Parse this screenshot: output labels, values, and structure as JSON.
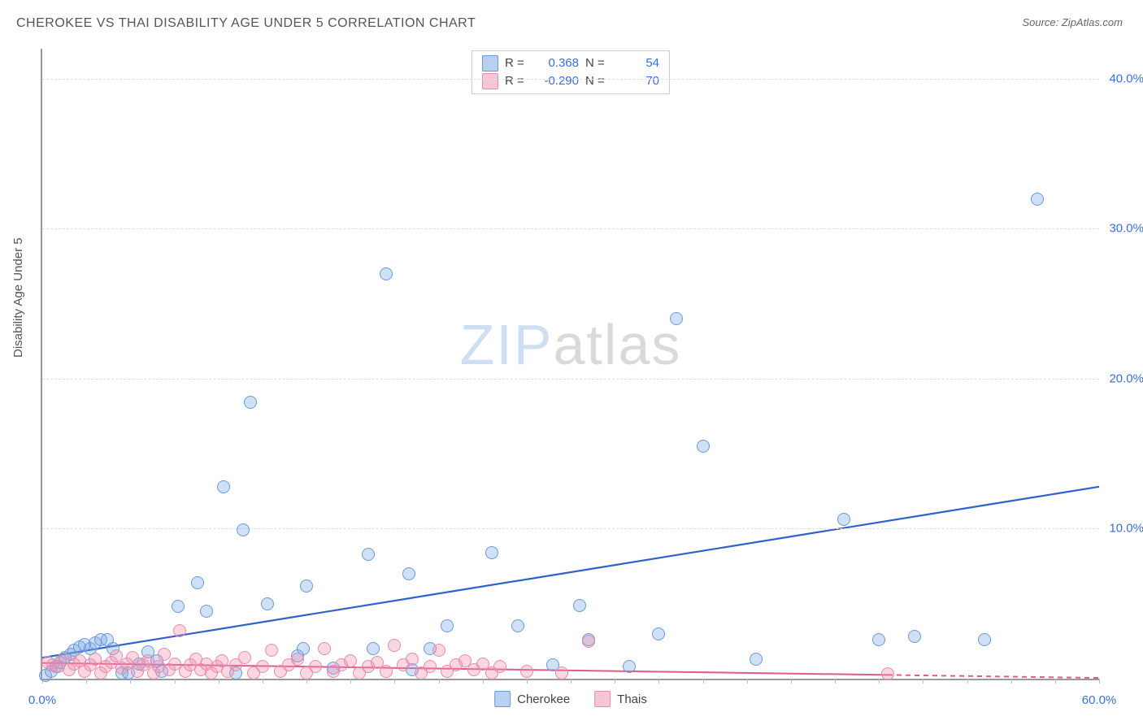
{
  "title": "CHEROKEE VS THAI DISABILITY AGE UNDER 5 CORRELATION CHART",
  "source_label": "Source: ",
  "source_value": "ZipAtlas.com",
  "y_axis_label": "Disability Age Under 5",
  "watermark": {
    "part1": "ZIP",
    "part2": "atlas"
  },
  "chart": {
    "type": "scatter",
    "background_color": "#ffffff",
    "grid_color": "#dddddd",
    "axis_color": "#999999",
    "xlim": [
      0,
      60
    ],
    "ylim": [
      0,
      42
    ],
    "x_ticks_minor_step": 2.5,
    "x_tick_labels": [
      {
        "x": 0,
        "label": "0.0%"
      },
      {
        "x": 60,
        "label": "60.0%"
      }
    ],
    "y_ticks": [
      {
        "y": 10,
        "label": "10.0%"
      },
      {
        "y": 20,
        "label": "20.0%"
      },
      {
        "y": 30,
        "label": "30.0%"
      },
      {
        "y": 40,
        "label": "40.0%"
      }
    ],
    "marker_radius": 8,
    "marker_border_width": 1.2,
    "series": [
      {
        "name": "Cherokee",
        "fill_color": "rgba(120,165,230,0.35)",
        "border_color": "#6a9ad6",
        "swatch_fill": "#b9d0f0",
        "swatch_border": "#6a9ad6",
        "R_label": "R =",
        "R_value": "0.368",
        "N_label": "N =",
        "N_value": "54",
        "regression": {
          "color": "#2f62c9",
          "width": 2.2,
          "dash": "none",
          "x1": 0,
          "y1": 1.4,
          "x2": 60,
          "y2": 12.8
        },
        "points": [
          [
            0.2,
            0.2
          ],
          [
            0.5,
            0.5
          ],
          [
            0.8,
            0.8
          ],
          [
            1.0,
            1.1
          ],
          [
            1.3,
            1.4
          ],
          [
            1.6,
            1.6
          ],
          [
            1.8,
            1.9
          ],
          [
            2.1,
            2.1
          ],
          [
            2.4,
            2.3
          ],
          [
            2.7,
            2.0
          ],
          [
            3.0,
            2.4
          ],
          [
            3.3,
            2.6
          ],
          [
            3.7,
            2.6
          ],
          [
            4.0,
            2.0
          ],
          [
            4.5,
            0.4
          ],
          [
            4.9,
            0.4
          ],
          [
            5.5,
            1.0
          ],
          [
            6.0,
            1.8
          ],
          [
            6.5,
            1.2
          ],
          [
            6.8,
            0.5
          ],
          [
            7.7,
            4.8
          ],
          [
            8.8,
            6.4
          ],
          [
            9.3,
            4.5
          ],
          [
            10.3,
            12.8
          ],
          [
            11.0,
            0.4
          ],
          [
            11.4,
            9.9
          ],
          [
            11.8,
            18.4
          ],
          [
            12.8,
            5.0
          ],
          [
            14.5,
            1.5
          ],
          [
            14.8,
            2.0
          ],
          [
            15.0,
            6.2
          ],
          [
            16.5,
            0.7
          ],
          [
            18.5,
            8.3
          ],
          [
            18.8,
            2.0
          ],
          [
            19.5,
            27.0
          ],
          [
            20.8,
            7.0
          ],
          [
            21.0,
            0.6
          ],
          [
            22.0,
            2.0
          ],
          [
            23.0,
            3.5
          ],
          [
            25.5,
            8.4
          ],
          [
            27.0,
            3.5
          ],
          [
            29.0,
            0.9
          ],
          [
            30.5,
            4.9
          ],
          [
            31.0,
            2.6
          ],
          [
            33.3,
            0.8
          ],
          [
            35.0,
            3.0
          ],
          [
            36.0,
            24.0
          ],
          [
            37.5,
            15.5
          ],
          [
            40.5,
            1.3
          ],
          [
            45.5,
            10.6
          ],
          [
            47.5,
            2.6
          ],
          [
            49.5,
            2.8
          ],
          [
            53.5,
            2.6
          ],
          [
            56.5,
            32.0
          ]
        ]
      },
      {
        "name": "Thais",
        "fill_color": "rgba(240,140,170,0.35)",
        "border_color": "#e78aac",
        "swatch_fill": "#f6c6d7",
        "swatch_border": "#e78aac",
        "R_label": "R =",
        "R_value": "-0.290",
        "N_label": "N =",
        "N_value": "70",
        "regression": {
          "color": "#e05a8a",
          "width": 2.0,
          "dash": "none",
          "x1": 0,
          "y1": 1.05,
          "x2": 48,
          "y2": 0.25
        },
        "regression_ext": {
          "color": "#e05a8a",
          "width": 2.0,
          "dash": "6,5",
          "x1": 48,
          "y1": 0.25,
          "x2": 60,
          "y2": 0.05
        },
        "points": [
          [
            0.3,
            1.1
          ],
          [
            0.6,
            0.9
          ],
          [
            0.9,
            0.8
          ],
          [
            1.2,
            1.3
          ],
          [
            1.5,
            0.6
          ],
          [
            1.8,
            1.0
          ],
          [
            2.1,
            1.2
          ],
          [
            2.4,
            0.5
          ],
          [
            2.7,
            0.9
          ],
          [
            3.0,
            1.3
          ],
          [
            3.3,
            0.4
          ],
          [
            3.6,
            0.8
          ],
          [
            3.9,
            1.1
          ],
          [
            4.2,
            1.5
          ],
          [
            4.5,
            0.7
          ],
          [
            4.8,
            1.0
          ],
          [
            5.1,
            1.4
          ],
          [
            5.4,
            0.5
          ],
          [
            5.7,
            0.9
          ],
          [
            6.0,
            1.2
          ],
          [
            6.3,
            0.4
          ],
          [
            6.6,
            0.8
          ],
          [
            6.9,
            1.6
          ],
          [
            7.2,
            0.6
          ],
          [
            7.5,
            1.0
          ],
          [
            7.8,
            3.2
          ],
          [
            8.1,
            0.5
          ],
          [
            8.4,
            0.9
          ],
          [
            8.7,
            1.3
          ],
          [
            9.0,
            0.6
          ],
          [
            9.3,
            1.0
          ],
          [
            9.6,
            0.4
          ],
          [
            9.9,
            0.8
          ],
          [
            10.2,
            1.2
          ],
          [
            10.5,
            0.5
          ],
          [
            11.0,
            0.9
          ],
          [
            11.5,
            1.4
          ],
          [
            12.0,
            0.4
          ],
          [
            12.5,
            0.8
          ],
          [
            13.0,
            1.9
          ],
          [
            13.5,
            0.5
          ],
          [
            14.0,
            0.9
          ],
          [
            14.5,
            1.3
          ],
          [
            15.0,
            0.4
          ],
          [
            15.5,
            0.8
          ],
          [
            16.0,
            2.0
          ],
          [
            16.5,
            0.5
          ],
          [
            17.0,
            0.9
          ],
          [
            17.5,
            1.2
          ],
          [
            18.0,
            0.4
          ],
          [
            18.5,
            0.8
          ],
          [
            19.0,
            1.1
          ],
          [
            19.5,
            0.5
          ],
          [
            20.0,
            2.2
          ],
          [
            20.5,
            0.9
          ],
          [
            21.0,
            1.3
          ],
          [
            21.5,
            0.4
          ],
          [
            22.0,
            0.8
          ],
          [
            22.5,
            1.9
          ],
          [
            23.0,
            0.5
          ],
          [
            23.5,
            0.9
          ],
          [
            24.0,
            1.2
          ],
          [
            24.5,
            0.6
          ],
          [
            25.0,
            1.0
          ],
          [
            25.5,
            0.4
          ],
          [
            26.0,
            0.8
          ],
          [
            27.5,
            0.5
          ],
          [
            29.5,
            0.4
          ],
          [
            31.0,
            2.5
          ],
          [
            48.0,
            0.3
          ]
        ]
      }
    ]
  },
  "legend_bottom": [
    {
      "label": "Cherokee",
      "series_index": 0
    },
    {
      "label": "Thais",
      "series_index": 1
    }
  ]
}
